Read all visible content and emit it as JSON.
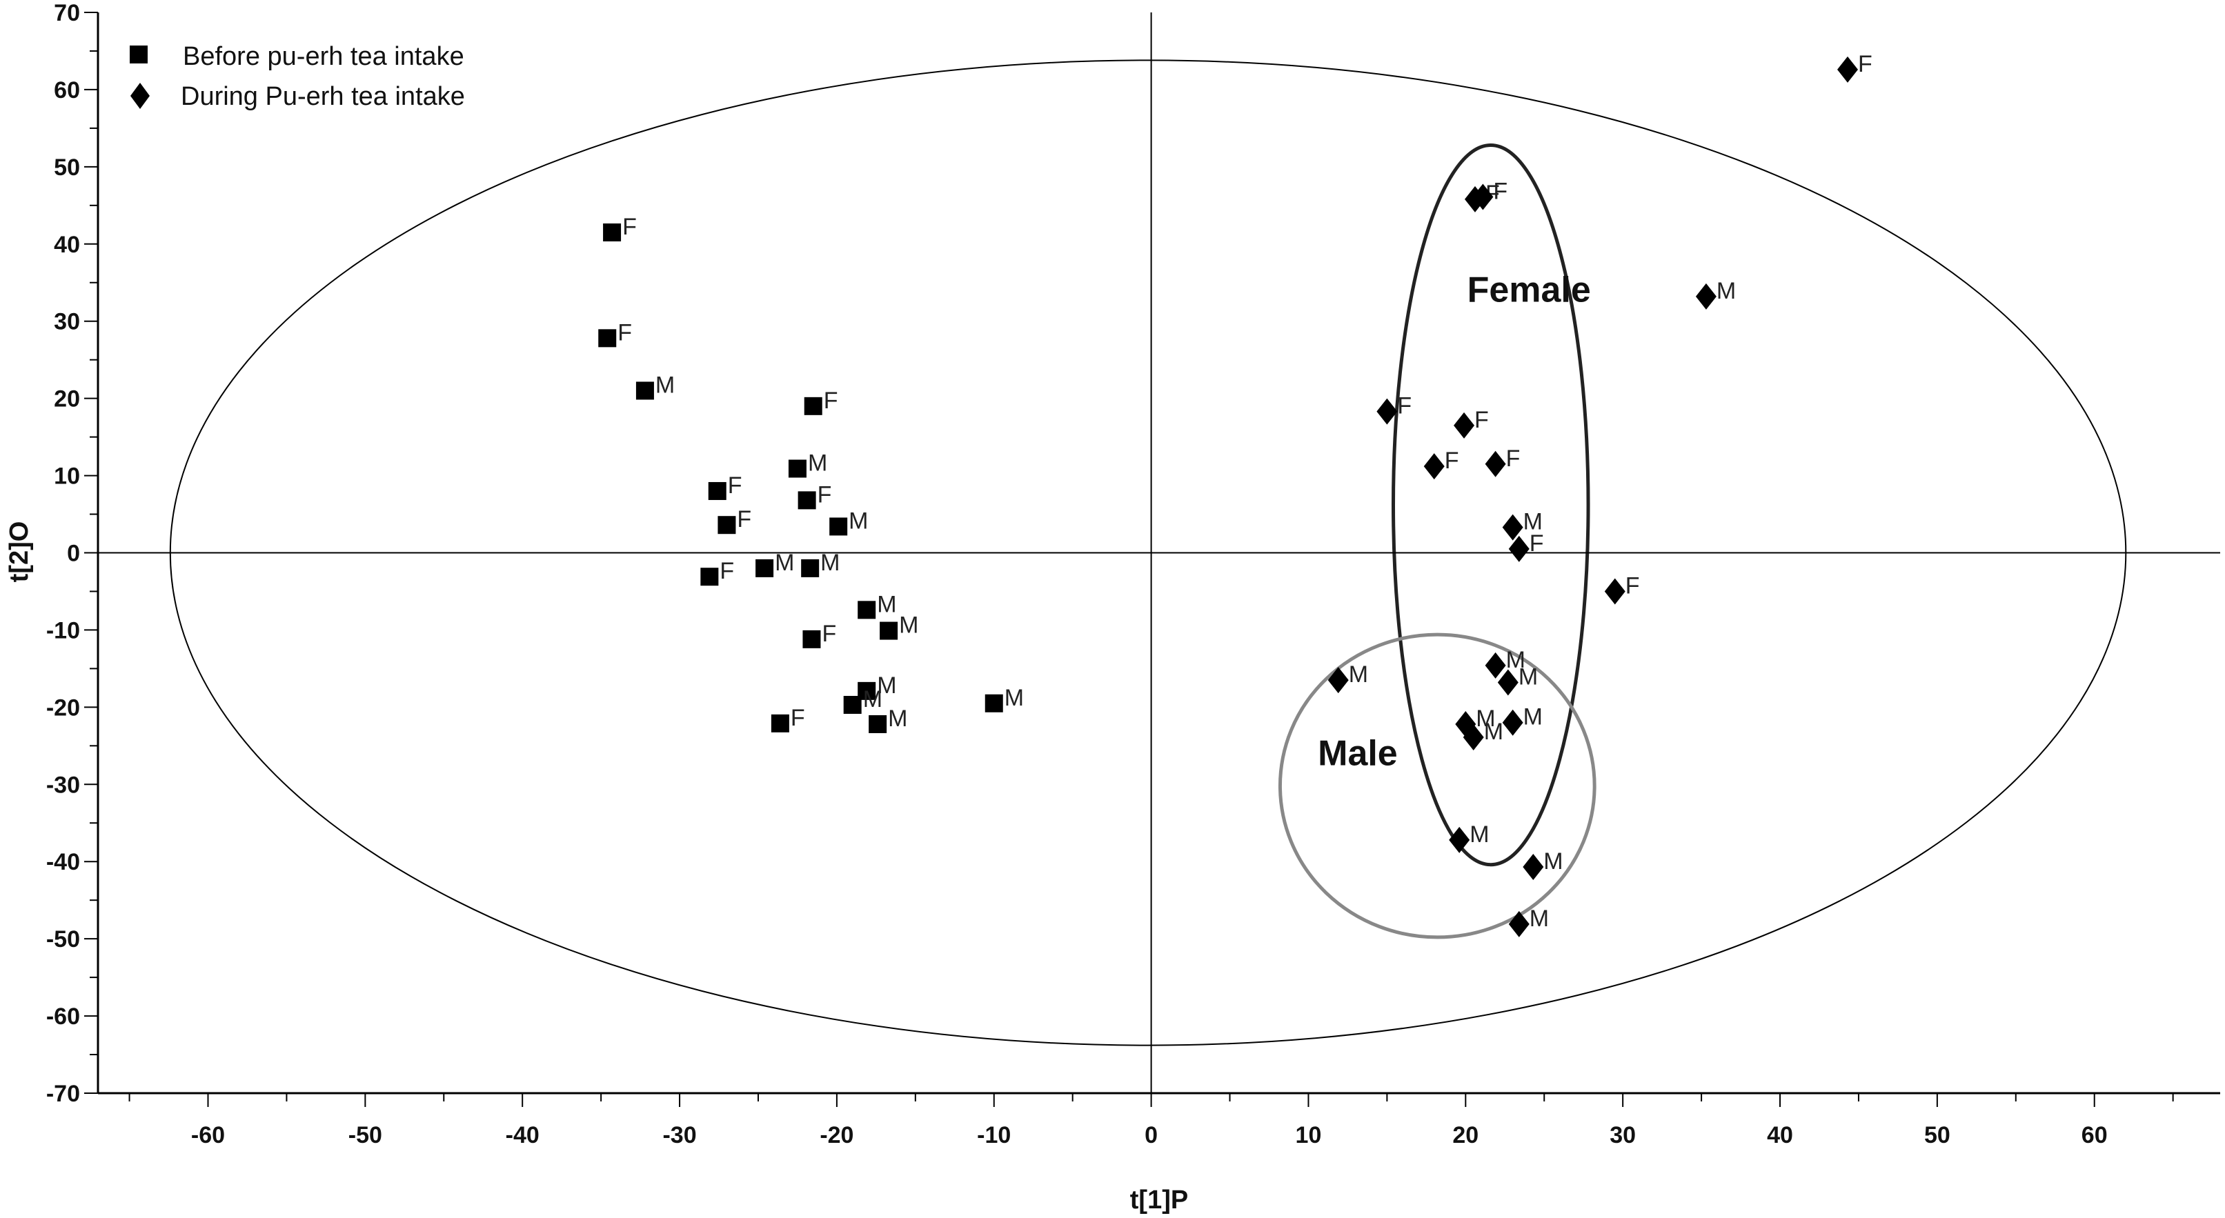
{
  "chart_data": {
    "type": "scatter",
    "title": "",
    "xlabel": "t[1]P",
    "ylabel": "t[2]O",
    "xlim": [
      -67,
      68
    ],
    "ylim": [
      -70,
      70
    ],
    "xticks": [
      -60,
      -50,
      -40,
      -30,
      -20,
      -10,
      0,
      10,
      20,
      30,
      40,
      50,
      60
    ],
    "yticks": [
      70,
      60,
      50,
      40,
      30,
      20,
      10,
      0,
      -10,
      -20,
      -30,
      -40,
      -50,
      -60,
      -70
    ],
    "grid": false,
    "legend_position": "top-left",
    "series": [
      {
        "name": "Before pu-erh tea intake",
        "marker": "square",
        "color": "#000000",
        "points": [
          {
            "x": -34.3,
            "y": 41.5,
            "label": "F"
          },
          {
            "x": -34.6,
            "y": 27.8,
            "label": "F"
          },
          {
            "x": -32.2,
            "y": 21.0,
            "label": "M"
          },
          {
            "x": -21.5,
            "y": 19.0,
            "label": "F"
          },
          {
            "x": -22.5,
            "y": 10.9,
            "label": "M"
          },
          {
            "x": -27.6,
            "y": 8.0,
            "label": "F"
          },
          {
            "x": -21.9,
            "y": 6.8,
            "label": "F"
          },
          {
            "x": -27.0,
            "y": 3.6,
            "label": "F"
          },
          {
            "x": -19.9,
            "y": 3.4,
            "label": "M"
          },
          {
            "x": -28.1,
            "y": -3.1,
            "label": "F"
          },
          {
            "x": -24.6,
            "y": -2.0,
            "label": "M"
          },
          {
            "x": -21.7,
            "y": -2.0,
            "label": "M"
          },
          {
            "x": -18.1,
            "y": -7.4,
            "label": "M"
          },
          {
            "x": -16.7,
            "y": -10.1,
            "label": "M"
          },
          {
            "x": -21.6,
            "y": -11.2,
            "label": "F"
          },
          {
            "x": -18.1,
            "y": -17.9,
            "label": "M"
          },
          {
            "x": -19.0,
            "y": -19.7,
            "label": "M"
          },
          {
            "x": -10.0,
            "y": -19.5,
            "label": "M"
          },
          {
            "x": -23.6,
            "y": -22.1,
            "label": "F"
          },
          {
            "x": -17.4,
            "y": -22.2,
            "label": "M"
          }
        ]
      },
      {
        "name": "During Pu-erh tea intake",
        "marker": "diamond",
        "color": "#000000",
        "points": [
          {
            "x": 44.3,
            "y": 62.6,
            "label": "F"
          },
          {
            "x": 20.6,
            "y": 45.8,
            "label": "F"
          },
          {
            "x": 21.1,
            "y": 46.1,
            "label": "F"
          },
          {
            "x": 35.3,
            "y": 33.2,
            "label": "M"
          },
          {
            "x": 15.0,
            "y": 18.3,
            "label": "F"
          },
          {
            "x": 19.9,
            "y": 16.5,
            "label": "F"
          },
          {
            "x": 18.0,
            "y": 11.2,
            "label": "F"
          },
          {
            "x": 21.9,
            "y": 11.5,
            "label": "F"
          },
          {
            "x": 23.0,
            "y": 3.3,
            "label": "M"
          },
          {
            "x": 23.4,
            "y": 0.5,
            "label": "F"
          },
          {
            "x": 29.5,
            "y": -5.0,
            "label": "F"
          },
          {
            "x": 11.9,
            "y": -16.5,
            "label": "M"
          },
          {
            "x": 21.9,
            "y": -14.6,
            "label": "M"
          },
          {
            "x": 22.7,
            "y": -16.8,
            "label": "M"
          },
          {
            "x": 20.0,
            "y": -22.2,
            "label": "M"
          },
          {
            "x": 20.5,
            "y": -23.9,
            "label": "M"
          },
          {
            "x": 23.0,
            "y": -22.0,
            "label": "M"
          },
          {
            "x": 19.6,
            "y": -37.2,
            "label": "M"
          },
          {
            "x": 24.3,
            "y": -40.7,
            "label": "M"
          },
          {
            "x": 23.4,
            "y": -48.1,
            "label": "M"
          }
        ]
      }
    ],
    "annotations": [
      {
        "text": "Female",
        "x": 20.1,
        "y": 32.5
      },
      {
        "text": "Male",
        "x": 10.6,
        "y": -27.5
      }
    ],
    "ellipses": [
      {
        "name": "hotelling-t2",
        "cx": -0.2,
        "cy": 0,
        "rx": 62.2,
        "ry": 63.8,
        "color": "#000000"
      },
      {
        "name": "female-cluster",
        "cx": 21.6,
        "cy": 6.2,
        "rx": 6.2,
        "ry": 46.6,
        "color": "#222222"
      },
      {
        "name": "male-cluster",
        "cx": 18.2,
        "cy": -30.2,
        "rx": 10.0,
        "ry": 19.6,
        "color": "#888888"
      }
    ]
  }
}
